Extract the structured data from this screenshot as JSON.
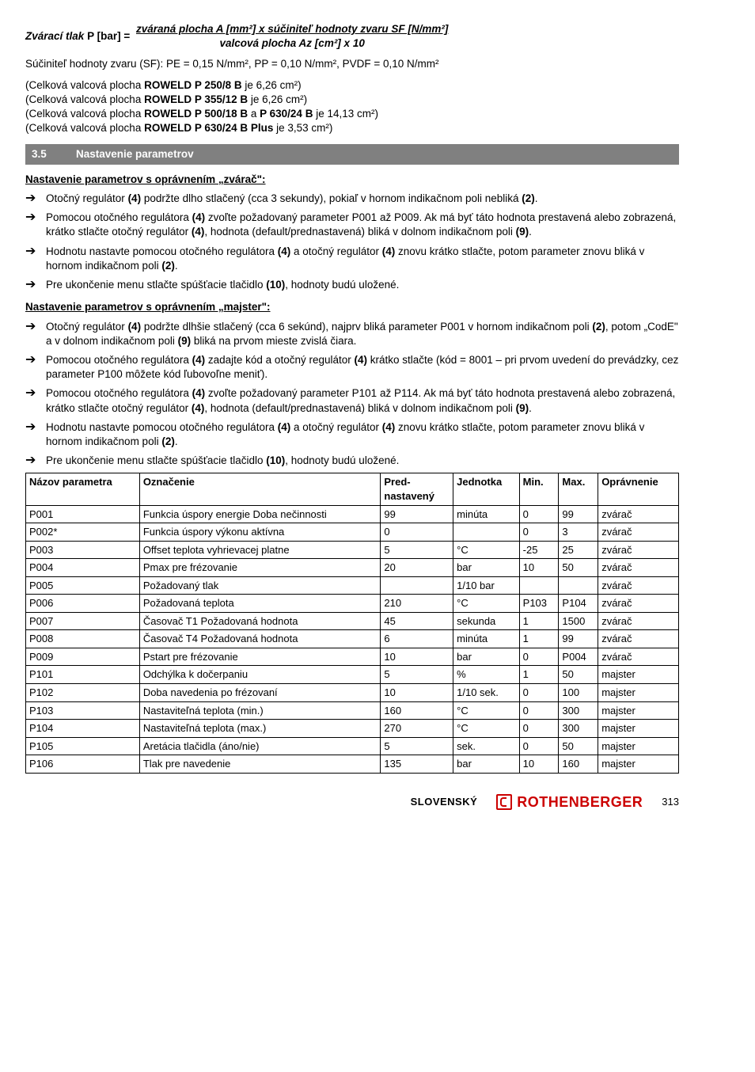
{
  "formula": {
    "lhs": "Zvárací tlak",
    "var": "P [bar] =",
    "num": "zváraná plocha A [mm²] x súčiniteľ hodnoty zvaru SF [N/mm²]",
    "den": "valcová plocha Az [cm²] x 10"
  },
  "sf_line": "Súčiniteľ hodnoty zvaru (SF): PE = 0,15 N/mm², PP = 0,10 N/mm², PVDF = 0,10 N/mm²",
  "plochy": [
    {
      "pre": "(Celková valcová plocha ",
      "b": "ROWELD P 250/8 B",
      "post": " je 6,26 cm²)"
    },
    {
      "pre": "(Celková valcová plocha ",
      "b": "ROWELD P 355/12 B",
      "post": " je 6,26 cm²)"
    },
    {
      "pre": "(Celková valcová plocha ",
      "b": "ROWELD P 500/18 B",
      "mid": " a ",
      "b2": "P 630/24 B",
      "post": " je 14,13 cm²)"
    },
    {
      "pre": "(Celková valcová plocha ",
      "b": "ROWELD P 630/24 B Plus",
      "post": " je 3,53 cm²)"
    }
  ],
  "section": {
    "num": "3.5",
    "title": "Nastavenie parametrov"
  },
  "sub1": "Nastavenie parametrov s oprávnením „zvárač\":",
  "z_bullets": [
    "Otočný regulátor <b>(4)</b> podržte dlho stlačený (cca 3 sekundy), pokiaľ v hornom indikačnom poli nebliká <b>(2)</b>.",
    "Pomocou otočného regulátora <b>(4)</b> zvoľte požadovaný parameter P001 až P009. Ak má byť táto hodnota prestavená alebo zobrazená, krátko stlačte otočný regulátor <b>(4)</b>, hodnota (default/prednastavená) bliká v dolnom indikačnom poli <b>(9)</b>.",
    "Hodnotu nastavte pomocou otočného regulátora <b>(4)</b> a otočný regulátor <b>(4)</b> znovu krátko stlačte, potom parameter znovu bliká v hornom indikačnom poli <b>(2)</b>.",
    "Pre ukončenie menu stlačte spúšťacie tlačidlo <b>(10)</b>, hodnoty budú uložené."
  ],
  "sub2": "Nastavenie parametrov s oprávnením „majster\":",
  "m_bullets": [
    "Otočný regulátor <b>(4)</b> podržte dlhšie stlačený (cca 6 sekúnd), najprv bliká parameter P001 v hornom indikačnom poli <b>(2)</b>, potom „CodE\" a v dolnom indikačnom poli <b>(9)</b> bliká na prvom mieste zvislá čiara.",
    "Pomocou otočného regulátora <b>(4)</b> zadajte kód a otočný regulátor <b>(4)</b> krátko stlačte (kód = 8001 – pri prvom uvedení do prevádzky, cez parameter P100 môžete kód ľubovoľne meniť).",
    "Pomocou otočného regulátora <b>(4)</b> zvoľte požadovaný parameter P101 až P114. Ak má byť táto hodnota prestavená alebo zobrazená, krátko stlačte otočný regulátor <b>(4)</b>, hodnota (default/prednastavená) bliká v dolnom indikačnom poli <b>(9)</b>.",
    "Hodnotu nastavte pomocou otočného regulátora <b>(4)</b> a otočný regulátor <b>(4)</b> znovu krátko stlačte, potom parameter znovu bliká v hornom indikačnom poli <b>(2)</b>.",
    "Pre ukončenie menu stlačte spúšťacie tlačidlo <b>(10)</b>, hodnoty budú uložené."
  ],
  "table": {
    "headers": [
      "Názov parametra",
      "Označenie",
      "Pred-\nnastavený",
      "Jednotka",
      "Min.",
      "Max.",
      "Oprávnenie"
    ],
    "rows": [
      [
        "P001",
        "Funkcia úspory energie Doba nečinnosti",
        "99",
        "minúta",
        "0",
        "99",
        "zvárač"
      ],
      [
        "P002*",
        "Funkcia úspory výkonu aktívna",
        "0",
        "",
        "0",
        "3",
        "zvárač"
      ],
      [
        "P003",
        "Offset teplota vyhrievacej platne",
        "5",
        "°C",
        "-25",
        "25",
        "zvárač"
      ],
      [
        "P004",
        "Pmax pre frézovanie",
        "20",
        "bar",
        "10",
        "50",
        "zvárač"
      ],
      [
        "P005",
        "Požadovaný tlak",
        "",
        "1/10 bar",
        "",
        "",
        "zvárač"
      ],
      [
        "P006",
        "Požadovaná teplota",
        "210",
        "°C",
        "P103",
        "P104",
        "zvárač"
      ],
      [
        "P007",
        "Časovač T1 Požadovaná hodnota",
        "45",
        "sekunda",
        "1",
        "1500",
        "zvárač"
      ],
      [
        "P008",
        "Časovač T4 Požadovaná hodnota",
        "6",
        "minúta",
        "1",
        "99",
        "zvárač"
      ],
      [
        "P009",
        "Pstart pre frézovanie",
        "10",
        "bar",
        "0",
        "P004",
        "zvárač"
      ],
      [
        "P101",
        "Odchýlka k dočerpaniu",
        "5",
        "%",
        "1",
        "50",
        "majster"
      ],
      [
        "P102",
        "Doba navedenia po frézovaní",
        "10",
        "1/10 sek.",
        "0",
        "100",
        "majster"
      ],
      [
        "P103",
        "Nastaviteľná teplota (min.)",
        "160",
        "°C",
        "0",
        "300",
        "majster"
      ],
      [
        "P104",
        "Nastaviteľná teplota (max.)",
        "270",
        "°C",
        "0",
        "300",
        "majster"
      ],
      [
        "P105",
        "Aretácia tlačidla (áno/nie)",
        "5",
        "sek.",
        "0",
        "50",
        "majster"
      ],
      [
        "P106",
        "Tlak pre navedenie",
        "135",
        "bar",
        "10",
        "160",
        "majster"
      ]
    ]
  },
  "footer": {
    "lang": "SLOVENSKÝ",
    "brand": "ROTHENBERGER",
    "page": "313"
  }
}
